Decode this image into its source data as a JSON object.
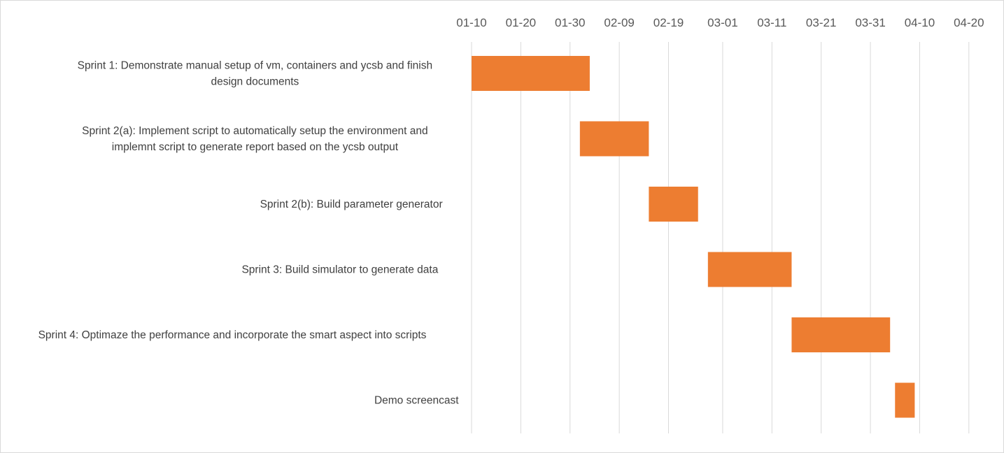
{
  "chart_data": {
    "type": "bar",
    "orientation": "horizontal",
    "style": "gantt",
    "x_ticks": [
      "01-10",
      "01-20",
      "01-30",
      "02-09",
      "02-19",
      "03-01",
      "03-11",
      "03-21",
      "03-31",
      "04-10",
      "04-20"
    ],
    "xlim": [
      "01-10",
      "04-25"
    ],
    "grid": true,
    "legend": "none",
    "tasks": [
      {
        "label": "Sprint 1: Demonstrate manual setup of vm, containers and ycsb and finish design documents",
        "start": "01-10",
        "end": "02-03"
      },
      {
        "label": "Sprint 2(a): Implement script to automatically setup the environment and implemnt script to generate report based on the ycsb output",
        "start": "02-01",
        "end": "02-15"
      },
      {
        "label": "Sprint 2(b): Build parameter generator",
        "start": "02-15",
        "end": "02-25"
      },
      {
        "label": "Sprint 3: Build simulator to generate data",
        "start": "02-27",
        "end": "03-15"
      },
      {
        "label": "Sprint 4: Optimaze the performance and incorporate the smart aspect into scripts",
        "start": "03-15",
        "end": "04-04"
      },
      {
        "label": "Demo screencast",
        "start": "04-05",
        "end": "04-09"
      }
    ],
    "bar_color": "#ED7D31"
  }
}
